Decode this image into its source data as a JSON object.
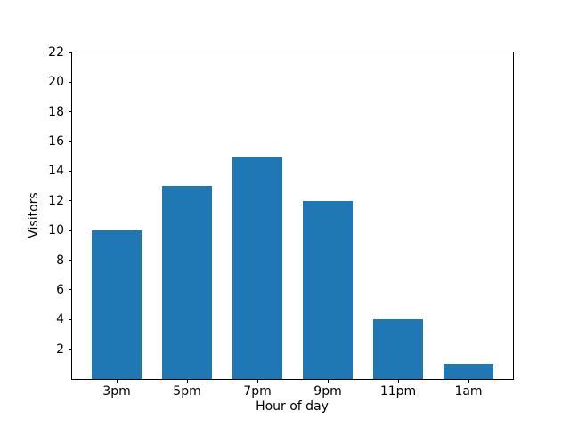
{
  "chart_data": {
    "type": "bar",
    "title": "",
    "xlabel": "Hour of day",
    "ylabel": "Visitors",
    "categories": [
      "3pm",
      "5pm",
      "7pm",
      "9pm",
      "11pm",
      "1am"
    ],
    "values": [
      10,
      13,
      15,
      12,
      4,
      1
    ],
    "ylim": [
      0,
      22
    ],
    "yticks": [
      2,
      4,
      6,
      8,
      10,
      12,
      14,
      16,
      18,
      20,
      22
    ],
    "grid": false,
    "legend": "none",
    "bar_color": "#1f77b4",
    "axis_color": "#000000",
    "background_color": "#ffffff"
  }
}
